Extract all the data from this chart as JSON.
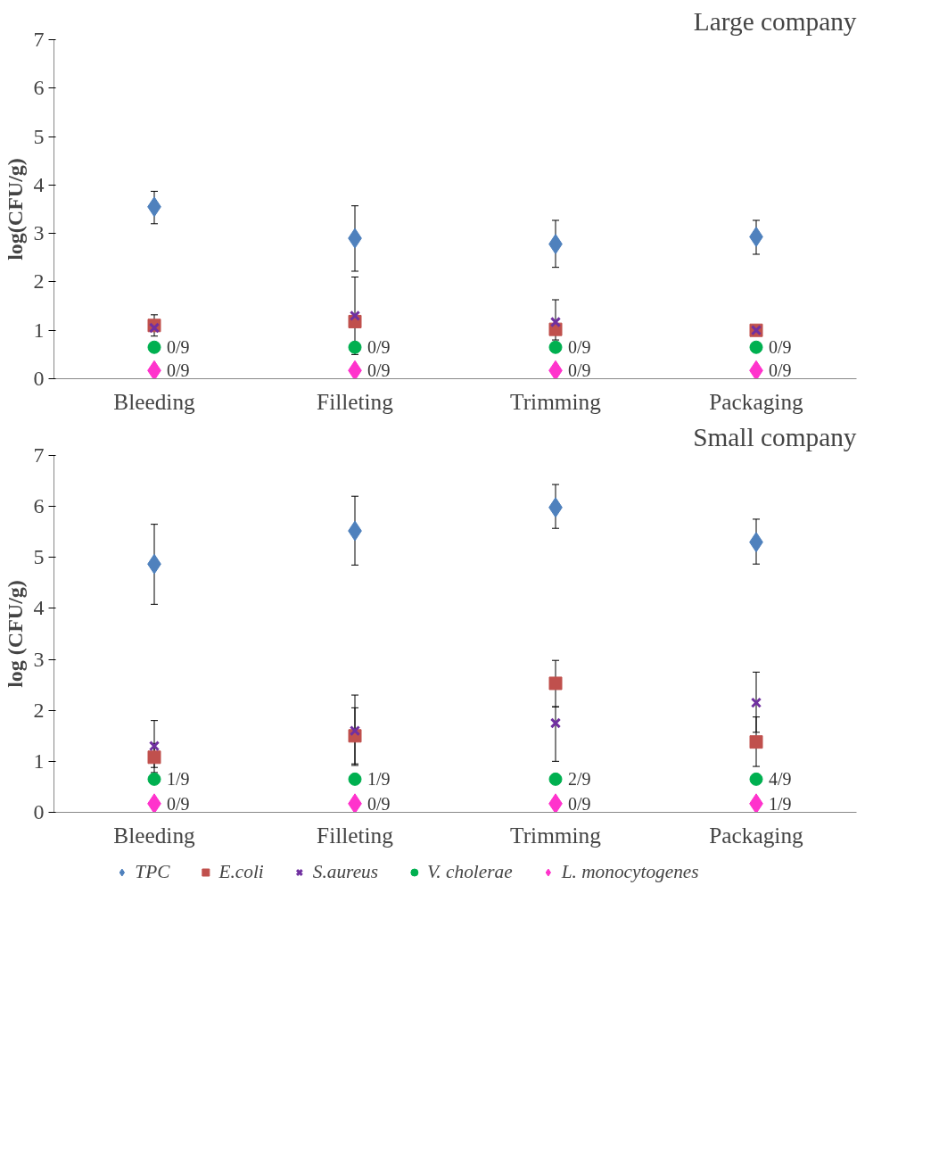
{
  "chart_data": [
    {
      "type": "scatter",
      "title": "Large company",
      "ylabel": "log(CFU/g)",
      "categories": [
        "Bleeding",
        "Filleting",
        "Trimming",
        "Packaging"
      ],
      "ylim": [
        0,
        7
      ],
      "yticks": [
        0,
        1,
        2,
        3,
        4,
        5,
        6,
        7
      ],
      "grid": false,
      "legend": false,
      "series": [
        {
          "color": "#4f81bd",
          "marker": "diamond",
          "values": [
            3.55,
            2.9,
            2.78,
            2.93
          ],
          "errors": [
            [
              3.2,
              3.87
            ],
            [
              2.22,
              3.57
            ],
            [
              2.3,
              3.27
            ],
            [
              2.57,
              3.27
            ]
          ]
        },
        {
          "color": "#c0504d",
          "marker": "square",
          "values": [
            1.1,
            1.18,
            1.02,
            1.0
          ]
        },
        {
          "color": "#7030a0",
          "marker": "cross",
          "values": [
            1.05,
            1.3,
            1.17,
            1.0
          ],
          "errors": [
            [
              0.88,
              1.32
            ],
            [
              0.5,
              2.1
            ],
            [
              0.8,
              1.63
            ],
            null
          ]
        },
        {
          "color": "#00b050",
          "marker": "circle",
          "values": [
            0.65,
            0.65,
            0.65,
            0.65
          ],
          "value_labels": [
            "0/9",
            "0/9",
            "0/9",
            "0/9"
          ]
        },
        {
          "color": "#ff33cc",
          "marker": "diamond",
          "values": [
            0.17,
            0.17,
            0.17,
            0.17
          ],
          "value_labels": [
            "0/9",
            "0/9",
            "0/9",
            "0/9"
          ]
        }
      ]
    },
    {
      "type": "scatter",
      "title": "Small company",
      "ylabel": "log (CFU/g)",
      "categories": [
        "Bleeding",
        "Filleting",
        "Trimming",
        "Packaging"
      ],
      "ylim": [
        0,
        7
      ],
      "yticks": [
        0,
        1,
        2,
        3,
        4,
        5,
        6,
        7
      ],
      "grid": false,
      "legend": "bottom",
      "series": [
        {
          "name": "TPC",
          "color": "#4f81bd",
          "marker": "diamond",
          "values": [
            4.87,
            5.52,
            5.98,
            5.3
          ],
          "errors": [
            [
              4.08,
              5.65
            ],
            [
              4.85,
              6.2
            ],
            [
              5.57,
              6.43
            ],
            [
              4.87,
              5.75
            ]
          ]
        },
        {
          "name": "E.coli",
          "color": "#c0504d",
          "marker": "square",
          "values": [
            1.08,
            1.5,
            2.53,
            1.38
          ],
          "errors": [
            [
              0.88,
              1.35
            ],
            [
              0.95,
              2.05
            ],
            [
              2.07,
              2.98
            ],
            [
              0.9,
              1.87
            ]
          ]
        },
        {
          "name": "S.aureus",
          "color": "#7030a0",
          "marker": "cross",
          "values": [
            1.3,
            1.6,
            1.75,
            2.15
          ],
          "errors": [
            [
              0.78,
              1.8
            ],
            [
              0.92,
              2.3
            ],
            [
              1.0,
              2.07
            ],
            [
              1.57,
              2.75
            ]
          ]
        },
        {
          "name": "V. cholerae",
          "color": "#00b050",
          "marker": "circle",
          "values": [
            0.65,
            0.65,
            0.65,
            0.65
          ],
          "value_labels": [
            "1/9",
            "1/9",
            "2/9",
            "4/9"
          ]
        },
        {
          "name": "L. monocytogenes",
          "color": "#ff33cc",
          "marker": "diamond",
          "values": [
            0.17,
            0.17,
            0.17,
            0.17
          ],
          "value_labels": [
            "0/9",
            "0/9",
            "0/9",
            "1/9"
          ]
        }
      ]
    }
  ]
}
